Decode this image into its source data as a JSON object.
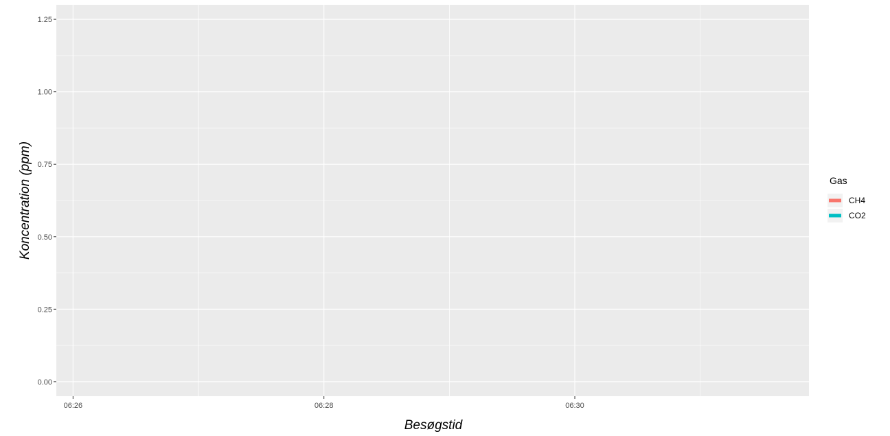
{
  "chart_data": {
    "type": "line",
    "title": "",
    "xlabel": "Besøgstid",
    "ylabel": "Koncentration (ppm)",
    "x_tick_labels": [
      "06:26",
      "06:28",
      "06:30"
    ],
    "y_tick_labels": [
      "0.00",
      "0.25",
      "0.50",
      "0.75",
      "1.00",
      "1.25"
    ],
    "y_ticks": [
      0,
      0.25,
      0.5,
      0.75,
      1.0,
      1.25
    ],
    "ylim": [
      -0.05,
      1.3
    ],
    "xlim": [
      "06:25:52",
      "06:31:52"
    ],
    "grid": true,
    "legend_position": "right",
    "legend_title": "Gas",
    "series": [
      {
        "name": "CH4",
        "color": "#F8766D",
        "x": [],
        "y": []
      },
      {
        "name": "CO2",
        "color": "#00BFC4",
        "x": [],
        "y": []
      }
    ]
  },
  "panel_background": "#EBEBEB",
  "grid_color": "#FFFFFF"
}
